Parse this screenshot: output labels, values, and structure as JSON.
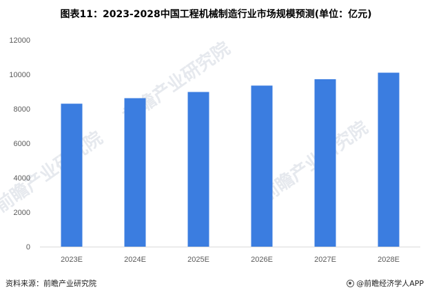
{
  "chart_data": {
    "type": "bar",
    "title": "图表11：2023-2028中国工程机械制造行业市场规模预测(单位：亿元)",
    "categories": [
      "2023E",
      "2024E",
      "2025E",
      "2026E",
      "2027E",
      "2028E"
    ],
    "values": [
      8300,
      8620,
      8980,
      9350,
      9720,
      10100
    ],
    "ylim": [
      0,
      12000
    ],
    "yticks": [
      0,
      2000,
      4000,
      6000,
      8000,
      10000,
      12000
    ],
    "bar_color": "#3b7de0",
    "grid": false
  },
  "footer": {
    "source": "资料来源：前瞻产业研究院",
    "brand": "@前瞻经济学人APP"
  },
  "watermark": {
    "text": "前瞻产业研究院"
  },
  "colors": {
    "bar": "#3b7de0",
    "axis": "#d9d9d9",
    "tick_text": "#595959"
  }
}
